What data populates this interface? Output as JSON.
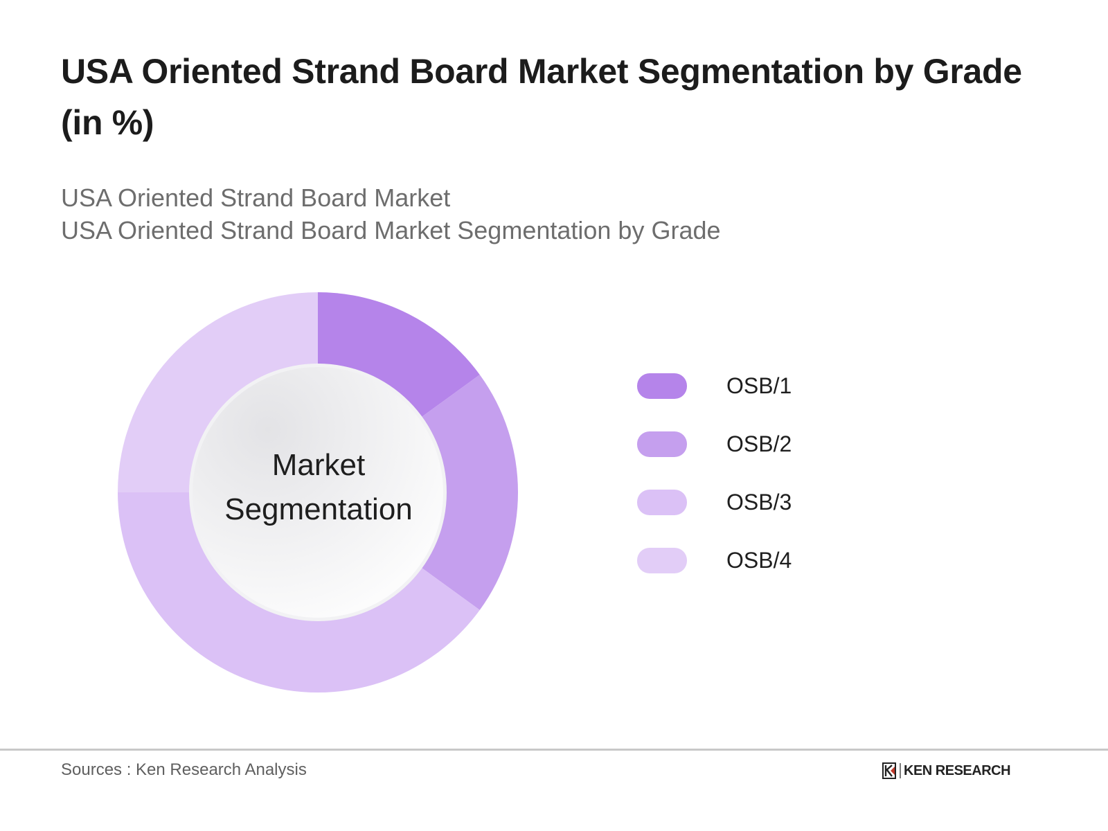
{
  "header": {
    "title": "USA Oriented Strand Board Market Segmentation by Grade (in %)",
    "subtitle_line1": "USA Oriented Strand Board Market",
    "subtitle_line2": "USA Oriented Strand Board Market Segmentation by Grade"
  },
  "center_label": {
    "line1": "Market",
    "line2": "Segmentation"
  },
  "legend": {
    "items": [
      {
        "label": "OSB/1",
        "color": "#b584ea"
      },
      {
        "label": "OSB/2",
        "color": "#c59fee"
      },
      {
        "label": "OSB/3",
        "color": "#dbc1f6"
      },
      {
        "label": "OSB/4",
        "color": "#e2cdf7"
      }
    ]
  },
  "footer": {
    "source": "Sources : Ken Research Analysis",
    "logo_text": "KEN RESEARCH"
  },
  "chart_data": {
    "type": "pie",
    "subtype": "donut",
    "title": "USA Oriented Strand Board Market Segmentation by Grade (in %)",
    "subtitle": "USA Oriented Strand Board Market — Segmentation by Grade",
    "center_text": "Market Segmentation",
    "categories": [
      "OSB/1",
      "OSB/2",
      "OSB/3",
      "OSB/4"
    ],
    "values": [
      15,
      20,
      40,
      25
    ],
    "colors": [
      "#b584ea",
      "#c59fee",
      "#dbc1f6",
      "#e2cdf7"
    ],
    "unit": "%",
    "start_angle": "12 o'clock, clockwise",
    "legend_position": "right",
    "data_labels": false
  }
}
